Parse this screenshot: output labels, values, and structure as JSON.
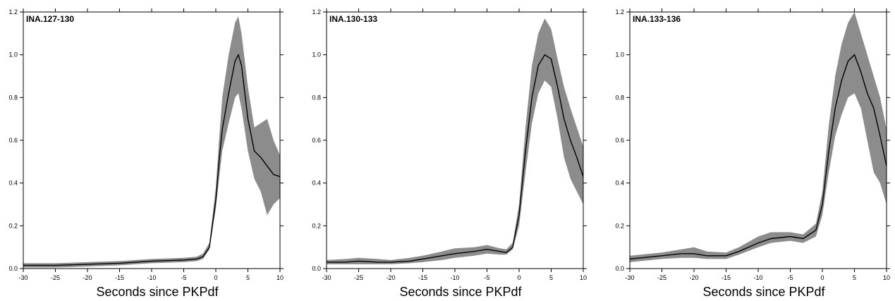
{
  "chart_data": [
    {
      "type": "area",
      "title": "INA.127-130",
      "xlabel": "Seconds since PKPdf",
      "ylabel": "",
      "xlim": [
        -30,
        10
      ],
      "ylim": [
        0,
        1.2
      ],
      "xticks": [
        -30,
        -25,
        -20,
        -15,
        -10,
        -5,
        0,
        5,
        10
      ],
      "xtick_labels": [
        "-30",
        "-25",
        "-20",
        "-15",
        "-10",
        "-5",
        "0",
        "5",
        "10"
      ],
      "yticks": [
        0,
        0.2,
        0.4,
        0.6,
        0.8,
        1.0,
        1.2
      ],
      "ytick_labels": [
        "0.0",
        "0.2",
        "0.4",
        "0.6",
        "0.8",
        "1.0",
        "1.2"
      ],
      "series": [
        {
          "x": [
            -30,
            -25,
            -20,
            -15,
            -10,
            -5,
            -3,
            -2,
            -1,
            0,
            0.5,
            1,
            2,
            3,
            3.5,
            4,
            5,
            6,
            7,
            8,
            9,
            10
          ],
          "mean": [
            0.015,
            0.015,
            0.02,
            0.025,
            0.035,
            0.04,
            0.045,
            0.055,
            0.1,
            0.32,
            0.5,
            0.65,
            0.82,
            0.97,
            1.0,
            0.95,
            0.7,
            0.55,
            0.52,
            0.48,
            0.44,
            0.43
          ],
          "lower": [
            0.005,
            0.005,
            0.01,
            0.015,
            0.025,
            0.03,
            0.035,
            0.045,
            0.09,
            0.28,
            0.42,
            0.55,
            0.68,
            0.8,
            0.82,
            0.75,
            0.55,
            0.42,
            0.36,
            0.25,
            0.3,
            0.33
          ],
          "upper": [
            0.025,
            0.025,
            0.03,
            0.035,
            0.045,
            0.05,
            0.055,
            0.07,
            0.12,
            0.38,
            0.6,
            0.8,
            1.0,
            1.15,
            1.18,
            1.1,
            0.85,
            0.66,
            0.68,
            0.7,
            0.6,
            0.53
          ]
        }
      ]
    },
    {
      "type": "area",
      "title": "INA.130-133",
      "xlabel": "Seconds since PKPdf",
      "ylabel": "",
      "xlim": [
        -30,
        10
      ],
      "ylim": [
        0,
        1.2
      ],
      "xticks": [
        -30,
        -25,
        -20,
        -15,
        -10,
        -5,
        0,
        5,
        10
      ],
      "xtick_labels": [
        "-30",
        "-25",
        "-20",
        "-15",
        "-10",
        "-5",
        "0",
        "5",
        "10"
      ],
      "yticks": [
        0,
        0.2,
        0.4,
        0.6,
        0.8,
        1.0,
        1.2
      ],
      "ytick_labels": [
        "0.0",
        "0.2",
        "0.4",
        "0.6",
        "0.8",
        "1.0",
        "1.2"
      ],
      "series": [
        {
          "x": [
            -30,
            -27,
            -25,
            -22,
            -20,
            -17,
            -15,
            -12,
            -10,
            -7,
            -5,
            -3,
            -2,
            -1,
            0,
            1,
            2,
            3,
            4,
            5,
            6,
            7,
            8,
            9,
            10
          ],
          "mean": [
            0.03,
            0.03,
            0.035,
            0.03,
            0.03,
            0.035,
            0.045,
            0.06,
            0.07,
            0.08,
            0.09,
            0.08,
            0.075,
            0.1,
            0.25,
            0.55,
            0.8,
            0.95,
            1.0,
            0.98,
            0.85,
            0.7,
            0.6,
            0.52,
            0.43
          ],
          "lower": [
            0.02,
            0.02,
            0.02,
            0.02,
            0.02,
            0.025,
            0.03,
            0.04,
            0.05,
            0.06,
            0.07,
            0.065,
            0.065,
            0.09,
            0.2,
            0.45,
            0.68,
            0.82,
            0.88,
            0.85,
            0.7,
            0.52,
            0.42,
            0.36,
            0.3
          ],
          "upper": [
            0.04,
            0.045,
            0.05,
            0.045,
            0.04,
            0.05,
            0.06,
            0.08,
            0.095,
            0.1,
            0.11,
            0.095,
            0.09,
            0.12,
            0.3,
            0.66,
            0.95,
            1.1,
            1.17,
            1.12,
            0.98,
            0.85,
            0.75,
            0.66,
            0.57
          ]
        }
      ]
    },
    {
      "type": "area",
      "title": "INA.133-136",
      "xlabel": "Seconds since PKPdf",
      "ylabel": "",
      "xlim": [
        -30,
        10
      ],
      "ylim": [
        0,
        1.2
      ],
      "xticks": [
        -30,
        -25,
        -20,
        -15,
        -10,
        -5,
        0,
        5,
        10
      ],
      "xtick_labels": [
        "-30",
        "-25",
        "-20",
        "-15",
        "-10",
        "-5",
        "0",
        "5",
        "10"
      ],
      "yticks": [
        0,
        0.2,
        0.4,
        0.6,
        0.8,
        1.0,
        1.2
      ],
      "ytick_labels": [
        "0.0",
        "0.2",
        "0.4",
        "0.6",
        "0.8",
        "1.0",
        "1.2"
      ],
      "series": [
        {
          "x": [
            -30,
            -25,
            -22,
            -20,
            -18,
            -15,
            -13,
            -10,
            -8,
            -5,
            -3,
            -1,
            0,
            1,
            2,
            3,
            4,
            5,
            6,
            7,
            8,
            9,
            10
          ],
          "mean": [
            0.045,
            0.06,
            0.07,
            0.07,
            0.06,
            0.06,
            0.08,
            0.12,
            0.14,
            0.15,
            0.14,
            0.18,
            0.3,
            0.55,
            0.75,
            0.88,
            0.97,
            1.0,
            0.92,
            0.82,
            0.75,
            0.62,
            0.48
          ],
          "lower": [
            0.03,
            0.045,
            0.05,
            0.05,
            0.045,
            0.045,
            0.065,
            0.1,
            0.12,
            0.13,
            0.12,
            0.15,
            0.25,
            0.45,
            0.62,
            0.72,
            0.8,
            0.82,
            0.75,
            0.6,
            0.45,
            0.4,
            0.3
          ],
          "upper": [
            0.06,
            0.075,
            0.09,
            0.1,
            0.08,
            0.075,
            0.1,
            0.15,
            0.17,
            0.17,
            0.16,
            0.21,
            0.36,
            0.67,
            0.9,
            1.05,
            1.15,
            1.2,
            1.1,
            1.0,
            0.9,
            0.8,
            0.65
          ]
        }
      ]
    }
  ]
}
